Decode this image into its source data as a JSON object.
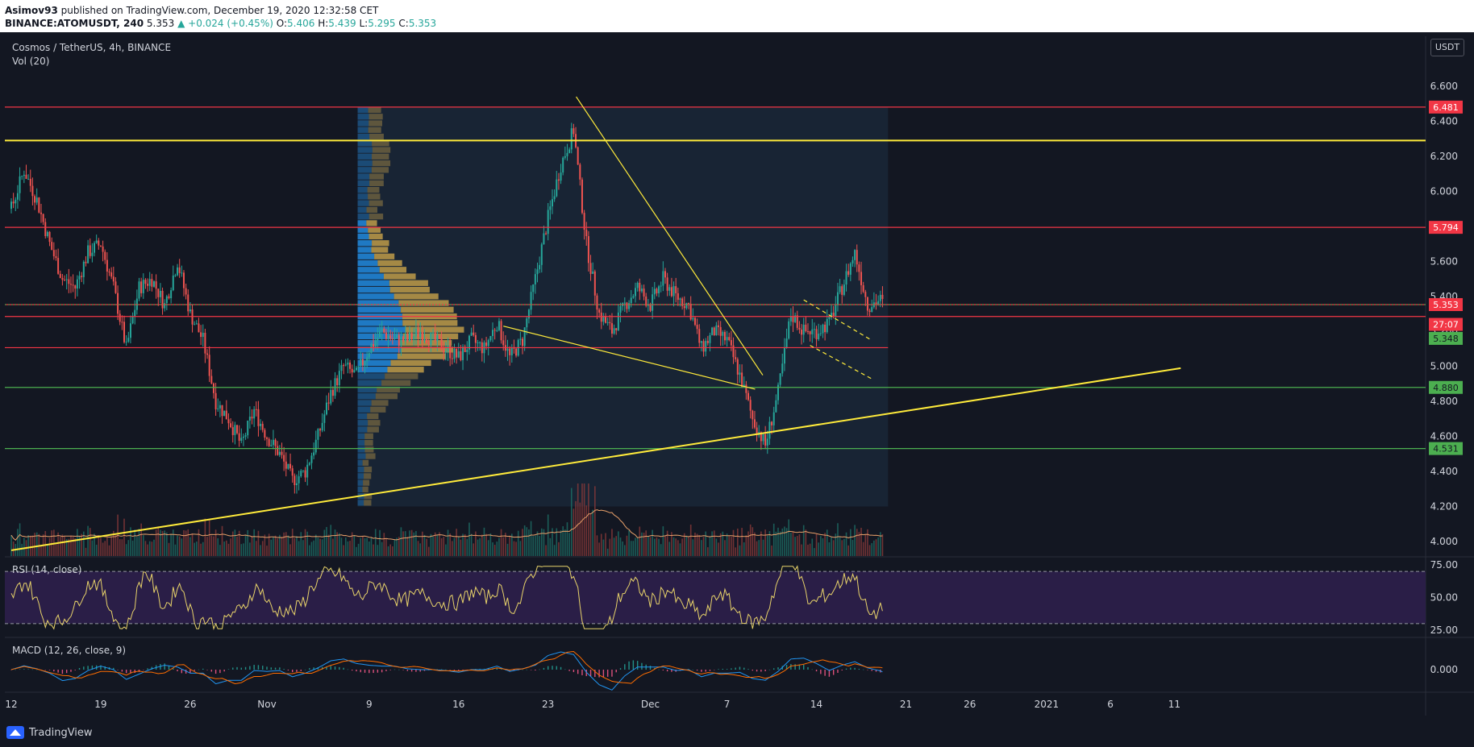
{
  "header": {
    "author": "Asimov93",
    "published_text": "published on TradingView.com, December 19, 2020 12:32:58 CET",
    "symbol": "BINANCE:ATOMUSDT, 240",
    "last": "5.353",
    "change": "▲ +0.024 (+0.45%)",
    "o_label": "O:",
    "o": "5.406",
    "h_label": "H:",
    "h": "5.439",
    "l_label": "L:",
    "l": "5.295",
    "c_label": "C:",
    "c": "5.353"
  },
  "chart_title": "Cosmos / TetherUS, 4h, BINANCE",
  "vol_label": "Vol (20)",
  "currency_button": "USDT",
  "rsi_label": "RSI (14, close)",
  "macd_label": "MACD (12, 26, close, 9)",
  "brand": "TradingView",
  "colors": {
    "background": "#131722",
    "up": "#26a69a",
    "down": "#ef5350",
    "red_level": "#f23645",
    "yellow_level": "#ffeb3b",
    "green_level": "#4caf50",
    "profile_blue": "#2196f3",
    "profile_gold": "#c9a24a",
    "rsi_line": "#e8d36a",
    "rsi_band": "#2a1e47",
    "macd_line": "#2196f3",
    "signal_line": "#ff6d00"
  },
  "chart_data": {
    "type": "candlestick",
    "title": "Cosmos / TetherUS, 4h, BINANCE",
    "price_axis": {
      "ylim": [
        3.92,
        6.72
      ],
      "ticks": [
        "6.600",
        "6.400",
        "6.200",
        "6.000",
        "5.800",
        "5.600",
        "5.400",
        "5.200",
        "5.000",
        "4.800",
        "4.600",
        "4.400",
        "4.200",
        "4.000"
      ]
    },
    "time_axis": {
      "ticks": [
        {
          "label": "12",
          "day": 0
        },
        {
          "label": "19",
          "day": 7
        },
        {
          "label": "26",
          "day": 14
        },
        {
          "label": "Nov",
          "day": 20
        },
        {
          "label": "9",
          "day": 28
        },
        {
          "label": "16",
          "day": 35
        },
        {
          "label": "23",
          "day": 42
        },
        {
          "label": "Dec",
          "day": 50
        },
        {
          "label": "7",
          "day": 56
        },
        {
          "label": "14",
          "day": 63
        },
        {
          "label": "21",
          "day": 70
        },
        {
          "label": "26",
          "day": 75
        },
        {
          "label": "2021",
          "day": 81
        },
        {
          "label": "6",
          "day": 86
        },
        {
          "label": "11",
          "day": 91
        }
      ]
    },
    "close_path": [
      [
        0,
        5.9
      ],
      [
        1,
        6.12
      ],
      [
        2,
        5.95
      ],
      [
        3,
        5.7
      ],
      [
        4,
        5.5
      ],
      [
        5,
        5.45
      ],
      [
        6,
        5.65
      ],
      [
        7,
        5.7
      ],
      [
        8,
        5.45
      ],
      [
        9,
        5.1
      ],
      [
        10,
        5.45
      ],
      [
        11,
        5.5
      ],
      [
        12,
        5.35
      ],
      [
        13,
        5.6
      ],
      [
        14,
        5.3
      ],
      [
        15,
        5.15
      ],
      [
        16,
        4.8
      ],
      [
        17,
        4.7
      ],
      [
        18,
        4.55
      ],
      [
        19,
        4.75
      ],
      [
        20,
        4.6
      ],
      [
        21,
        4.5
      ],
      [
        22,
        4.35
      ],
      [
        23,
        4.4
      ],
      [
        24,
        4.6
      ],
      [
        25,
        4.85
      ],
      [
        26,
        5.0
      ],
      [
        27,
        4.95
      ],
      [
        28,
        5.1
      ],
      [
        29,
        5.2
      ],
      [
        30,
        5.15
      ],
      [
        31,
        5.15
      ],
      [
        32,
        5.2
      ],
      [
        33,
        5.15
      ],
      [
        34,
        5.1
      ],
      [
        35,
        5.05
      ],
      [
        36,
        5.15
      ],
      [
        37,
        5.1
      ],
      [
        38,
        5.25
      ],
      [
        39,
        5.05
      ],
      [
        40,
        5.15
      ],
      [
        41,
        5.5
      ],
      [
        42,
        5.85
      ],
      [
        43,
        6.15
      ],
      [
        44,
        6.35
      ],
      [
        45,
        5.7
      ],
      [
        46,
        5.3
      ],
      [
        47,
        5.2
      ],
      [
        48,
        5.35
      ],
      [
        49,
        5.45
      ],
      [
        50,
        5.35
      ],
      [
        51,
        5.5
      ],
      [
        52,
        5.4
      ],
      [
        53,
        5.35
      ],
      [
        54,
        5.1
      ],
      [
        55,
        5.2
      ],
      [
        56,
        5.15
      ],
      [
        57,
        4.95
      ],
      [
        58,
        4.7
      ],
      [
        59,
        4.55
      ],
      [
        60,
        4.85
      ],
      [
        61,
        5.3
      ],
      [
        62,
        5.2
      ],
      [
        63,
        5.2
      ],
      [
        64,
        5.25
      ],
      [
        65,
        5.45
      ],
      [
        66,
        5.65
      ],
      [
        67,
        5.35
      ],
      [
        68,
        5.38
      ],
      [
        68.2,
        5.353
      ]
    ],
    "series": [
      {
        "name": "Vol (20)"
      },
      {
        "name": "RSI (14, close)",
        "levels": [
          70,
          30
        ],
        "ticks": [
          "75.00",
          "50.00",
          "25.00"
        ]
      },
      {
        "name": "MACD (12, 26, close, 9)",
        "ticks": [
          "0.000"
        ]
      }
    ],
    "horizontal_levels": [
      {
        "value": 6.481,
        "label": "6.481",
        "color": "red"
      },
      {
        "value": 6.29,
        "color": "yellow"
      },
      {
        "value": 5.794,
        "label": "5.794",
        "color": "red"
      },
      {
        "value": 5.353,
        "label": "5.353",
        "color": "red"
      },
      {
        "value": 5.285,
        "color": "red"
      },
      {
        "value": 5.107,
        "color": "red"
      },
      {
        "value": 4.88,
        "label": "4.880",
        "color": "green"
      },
      {
        "value": 4.531,
        "label": "4.531",
        "color": "green"
      }
    ],
    "price_tags": [
      {
        "value": 5.353,
        "label": "5.353",
        "color": "red"
      },
      {
        "value": 5.24,
        "label": "27:07",
        "color": "red"
      },
      {
        "value": 5.16,
        "label": "5.348",
        "color": "green"
      }
    ],
    "trendlines": [
      {
        "from": [
          0,
          3.95
        ],
        "to": [
          91.5,
          4.99
        ],
        "color": "yellow"
      },
      {
        "from": [
          44.2,
          6.54
        ],
        "to": [
          58.8,
          4.95
        ],
        "color": "yellow"
      },
      {
        "from": [
          38.5,
          5.23
        ],
        "to": [
          58.2,
          4.87
        ],
        "color": "yellow"
      },
      {
        "from": [
          62,
          5.38
        ],
        "to": [
          67.3,
          5.15
        ],
        "color": "yellow",
        "dashed": true
      },
      {
        "from": [
          62.5,
          5.12
        ],
        "to": [
          67.3,
          4.93
        ],
        "color": "yellow",
        "dashed": true
      }
    ]
  }
}
